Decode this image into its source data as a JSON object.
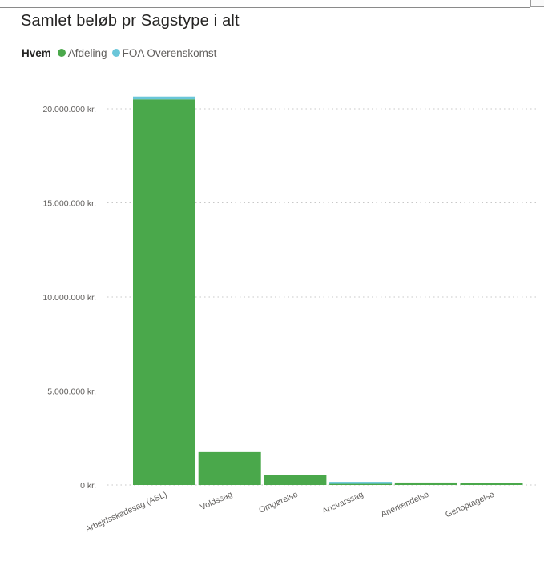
{
  "colors": {
    "afdeling": "#4aa84b",
    "foa": "#6ac6d9",
    "grid": "#c8c8c8",
    "text": "#605e5c",
    "title": "#252423"
  },
  "chart_data": {
    "type": "bar",
    "stacked": true,
    "title": "Samlet beløb pr Sagstype i alt",
    "legend_title": "Hvem",
    "legend_position": "top-left",
    "grid": true,
    "xlabel": "",
    "ylabel": "",
    "ylim": [
      0,
      22000000
    ],
    "yticks": [
      0,
      5000000,
      10000000,
      15000000,
      20000000
    ],
    "ytick_labels": [
      "0 kr.",
      "5.000.000 kr.",
      "10.000.000 kr.",
      "15.000.000 kr.",
      "20.000.000 kr."
    ],
    "categories": [
      "Arbejdsskadesag (ASL)",
      "Voldssag",
      "Omgørelse",
      "Ansvarssag",
      "Anerkendelse",
      "Genoptagelse"
    ],
    "series": [
      {
        "name": "Afdeling",
        "color": "#4aa84b",
        "values": [
          20500000,
          1750000,
          550000,
          60000,
          130000,
          70000
        ]
      },
      {
        "name": "FOA Overenskomst",
        "color": "#6ac6d9",
        "values": [
          150000,
          0,
          0,
          100000,
          0,
          0
        ]
      }
    ]
  }
}
